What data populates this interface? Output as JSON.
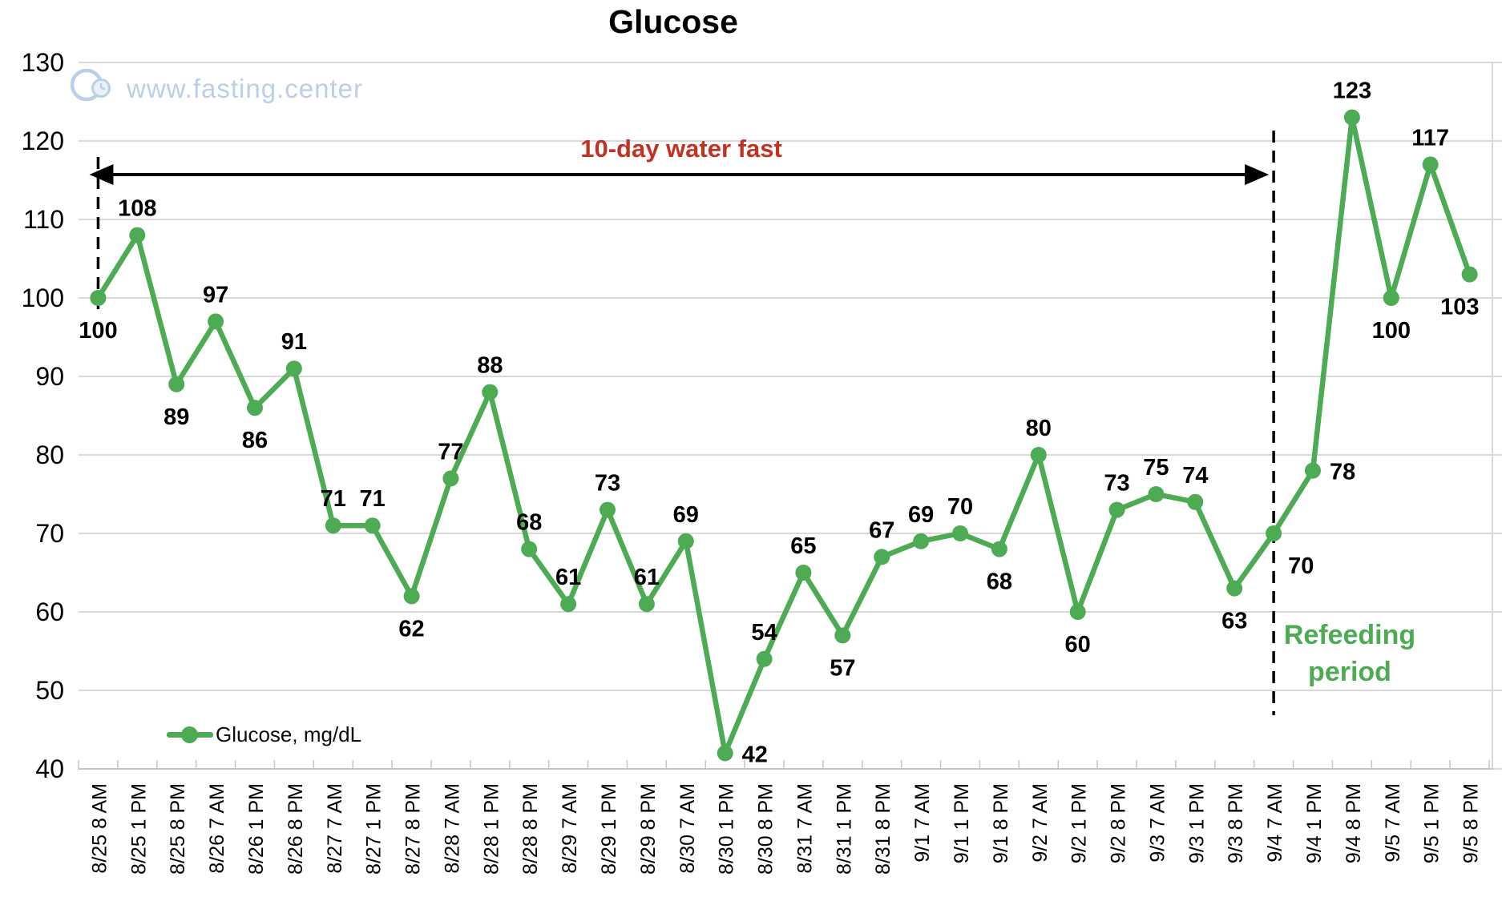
{
  "title": "Glucose",
  "watermark": {
    "text": "www.fasting.center",
    "icon": "clock-logo-icon"
  },
  "annotations": {
    "fast_label": "10-day water fast",
    "refeeding_line1": "Refeeding",
    "refeeding_line2": "period"
  },
  "legend": {
    "label": "Glucose, mg/dL",
    "marker": "line-with-dot"
  },
  "colors": {
    "series": "#4DAB53",
    "fast_text": "#C13222",
    "refeed_text": "#4DAB53",
    "watermark": "#B9CFEA",
    "watermark_fill": "#EAF1F9",
    "grid": "#D9D9D9",
    "axis": "#C6C6C6",
    "labels": "#000000",
    "annotation_lines": "#000000"
  },
  "chart_data": {
    "type": "line",
    "title": "Glucose",
    "xlabel": "",
    "ylabel": "",
    "ylim": [
      40,
      130
    ],
    "ytick_interval": 10,
    "y_ticks": [
      40,
      50,
      60,
      70,
      80,
      90,
      100,
      110,
      120,
      130
    ],
    "grid": true,
    "legend_position": "bottom-left",
    "categories": [
      "8/25 8 AM",
      "8/25 1 PM",
      "8/25 8 PM",
      "8/26 7 AM",
      "8/26 1 PM",
      "8/26 8 PM",
      "8/27 7 AM",
      "8/27 1 PM",
      "8/27 8 PM",
      "8/28 7 AM",
      "8/28 1 PM",
      "8/28 8 PM",
      "8/29 7 AM",
      "8/29 1 PM",
      "8/29 8 PM",
      "8/30 7 AM",
      "8/30 1 PM",
      "8/30 8 PM",
      "8/31 7 AM",
      "8/31 1 PM",
      "8/31 8 PM",
      "9/1 7 AM",
      "9/1 1 PM",
      "9/1 8 PM",
      "9/2 7 AM",
      "9/2 1 PM",
      "9/2 8 PM",
      "9/3 7 AM",
      "9/3 1 PM",
      "9/3 8 PM",
      "9/4 7 AM",
      "9/4 1 PM",
      "9/4 8 PM",
      "9/5 7 AM",
      "9/5 1 PM",
      "9/5 8 PM"
    ],
    "series": [
      {
        "name": "Glucose, mg/dL",
        "values": [
          100,
          108,
          89,
          97,
          86,
          91,
          71,
          71,
          62,
          77,
          88,
          68,
          61,
          73,
          61,
          69,
          42,
          54,
          65,
          57,
          67,
          69,
          70,
          68,
          80,
          60,
          73,
          75,
          74,
          63,
          70,
          78,
          123,
          100,
          117,
          103
        ]
      }
    ],
    "data_label_positions": [
      "below",
      "above",
      "below",
      "above",
      "below",
      "above",
      "above",
      "above",
      "below",
      "above",
      "above",
      "above",
      "above",
      "above",
      "above",
      "above",
      "right",
      "above",
      "above",
      "below",
      "above",
      "above",
      "above",
      "below",
      "above",
      "below",
      "above",
      "above",
      "above",
      "below",
      "below-right",
      "right",
      "above",
      "below",
      "above",
      "below-left"
    ],
    "fast_start_index": 0,
    "fast_end_index": 30
  }
}
